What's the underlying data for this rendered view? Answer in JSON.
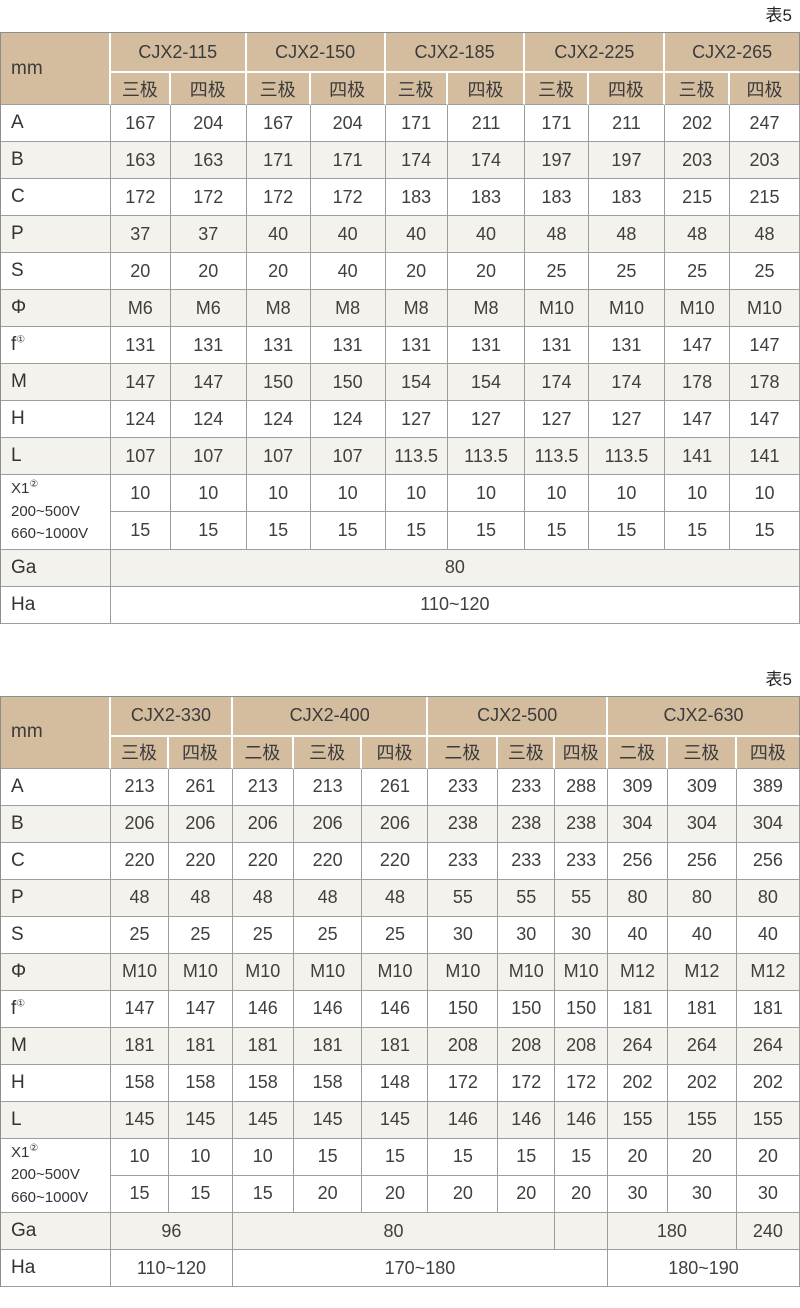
{
  "colors": {
    "header_bg": "#d4bd9f",
    "row_tint": "#f4f2ec",
    "grid_border": "#9d9d9d",
    "text": "#3c3c3c"
  },
  "tables": [
    {
      "caption": "表5",
      "corner_label": "mm",
      "col_groups": [
        {
          "label": "CJX2-115",
          "subs": [
            "三极",
            "四极"
          ]
        },
        {
          "label": "CJX2-150",
          "subs": [
            "三极",
            "四极"
          ]
        },
        {
          "label": "CJX2-185",
          "subs": [
            "三极",
            "四极"
          ]
        },
        {
          "label": "CJX2-225",
          "subs": [
            "三极",
            "四极"
          ]
        },
        {
          "label": "CJX2-265",
          "subs": [
            "三极",
            "四极"
          ]
        }
      ],
      "data_rows": [
        {
          "label": "A",
          "values": [
            "167",
            "204",
            "167",
            "204",
            "171",
            "211",
            "171",
            "211",
            "202",
            "247"
          ]
        },
        {
          "label": "B",
          "values": [
            "163",
            "163",
            "171",
            "171",
            "174",
            "174",
            "197",
            "197",
            "203",
            "203"
          ]
        },
        {
          "label": "C",
          "values": [
            "172",
            "172",
            "172",
            "172",
            "183",
            "183",
            "183",
            "183",
            "215",
            "215"
          ]
        },
        {
          "label": "P",
          "values": [
            "37",
            "37",
            "40",
            "40",
            "40",
            "40",
            "48",
            "48",
            "48",
            "48"
          ]
        },
        {
          "label": "S",
          "values": [
            "20",
            "20",
            "20",
            "40",
            "20",
            "20",
            "25",
            "25",
            "25",
            "25"
          ]
        },
        {
          "label": "Φ",
          "values": [
            "M6",
            "M6",
            "M8",
            "M8",
            "M8",
            "M8",
            "M10",
            "M10",
            "M10",
            "M10"
          ]
        },
        {
          "label": "f",
          "label_sup": "①",
          "values": [
            "131",
            "131",
            "131",
            "131",
            "131",
            "131",
            "131",
            "131",
            "147",
            "147"
          ]
        },
        {
          "label": "M",
          "values": [
            "147",
            "147",
            "150",
            "150",
            "154",
            "154",
            "174",
            "174",
            "178",
            "178"
          ]
        },
        {
          "label": "H",
          "values": [
            "124",
            "124",
            "124",
            "124",
            "127",
            "127",
            "127",
            "127",
            "147",
            "147"
          ]
        },
        {
          "label": "L",
          "values": [
            "107",
            "107",
            "107",
            "107",
            "113.5",
            "113.5",
            "113.5",
            "113.5",
            "141",
            "141"
          ]
        }
      ],
      "x1_block": {
        "label": "X1",
        "label_sup": "②",
        "line2": "200~500V",
        "line3": "660~1000V",
        "row_200_500": [
          "10",
          "10",
          "10",
          "10",
          "10",
          "10",
          "10",
          "10",
          "10",
          "10"
        ],
        "row_660_1000": [
          "15",
          "15",
          "15",
          "15",
          "15",
          "15",
          "15",
          "15",
          "15",
          "15"
        ]
      },
      "span_rows": [
        {
          "label": "Ga",
          "cells": [
            {
              "text": "80",
              "span": 10
            }
          ]
        },
        {
          "label": "Ha",
          "cells": [
            {
              "text": "110~120",
              "span": 10
            }
          ]
        }
      ]
    },
    {
      "caption": "表5",
      "corner_label": "mm",
      "col_groups": [
        {
          "label": "CJX2-330",
          "subs": [
            "三极",
            "四极"
          ]
        },
        {
          "label": "CJX2-400",
          "subs": [
            "二极",
            "三极",
            "四极"
          ]
        },
        {
          "label": "CJX2-500",
          "subs": [
            "二极",
            "三极",
            "四极"
          ]
        },
        {
          "label": "CJX2-630",
          "subs": [
            "二极",
            "三极",
            "四极"
          ]
        }
      ],
      "data_rows": [
        {
          "label": "A",
          "values": [
            "213",
            "261",
            "213",
            "213",
            "261",
            "233",
            "233",
            "288",
            "309",
            "309",
            "389"
          ]
        },
        {
          "label": "B",
          "values": [
            "206",
            "206",
            "206",
            "206",
            "206",
            "238",
            "238",
            "238",
            "304",
            "304",
            "304"
          ]
        },
        {
          "label": "C",
          "values": [
            "220",
            "220",
            "220",
            "220",
            "220",
            "233",
            "233",
            "233",
            "256",
            "256",
            "256"
          ]
        },
        {
          "label": "P",
          "values": [
            "48",
            "48",
            "48",
            "48",
            "48",
            "55",
            "55",
            "55",
            "80",
            "80",
            "80"
          ]
        },
        {
          "label": "S",
          "values": [
            "25",
            "25",
            "25",
            "25",
            "25",
            "30",
            "30",
            "30",
            "40",
            "40",
            "40"
          ]
        },
        {
          "label": "Φ",
          "values": [
            "M10",
            "M10",
            "M10",
            "M10",
            "M10",
            "M10",
            "M10",
            "M10",
            "M12",
            "M12",
            "M12"
          ]
        },
        {
          "label": "f",
          "label_sup": "①",
          "values": [
            "147",
            "147",
            "146",
            "146",
            "146",
            "150",
            "150",
            "150",
            "181",
            "181",
            "181"
          ]
        },
        {
          "label": "M",
          "values": [
            "181",
            "181",
            "181",
            "181",
            "181",
            "208",
            "208",
            "208",
            "264",
            "264",
            "264"
          ]
        },
        {
          "label": "H",
          "values": [
            "158",
            "158",
            "158",
            "158",
            "148",
            "172",
            "172",
            "172",
            "202",
            "202",
            "202"
          ]
        },
        {
          "label": "L",
          "values": [
            "145",
            "145",
            "145",
            "145",
            "145",
            "146",
            "146",
            "146",
            "155",
            "155",
            "155"
          ]
        }
      ],
      "x1_block": {
        "label": "X1",
        "label_sup": "②",
        "line2": "200~500V",
        "line3": "660~1000V",
        "row_200_500": [
          "10",
          "10",
          "10",
          "15",
          "15",
          "15",
          "15",
          "15",
          "20",
          "20",
          "20"
        ],
        "row_660_1000": [
          "15",
          "15",
          "15",
          "20",
          "20",
          "20",
          "20",
          "20",
          "30",
          "30",
          "30"
        ]
      },
      "span_rows": [
        {
          "label": "Ga",
          "cells": [
            {
              "text": "96",
              "span": 2
            },
            {
              "text": "80",
              "span": 5
            },
            {
              "text": "",
              "span": 1
            },
            {
              "text": "180",
              "span": 2
            },
            {
              "text": "240",
              "span": 1
            }
          ]
        },
        {
          "label": "Ha",
          "cells": [
            {
              "text": "110~120",
              "span": 2
            },
            {
              "text": "170~180",
              "span": 6
            },
            {
              "text": "180~190",
              "span": 3
            }
          ]
        }
      ]
    }
  ]
}
